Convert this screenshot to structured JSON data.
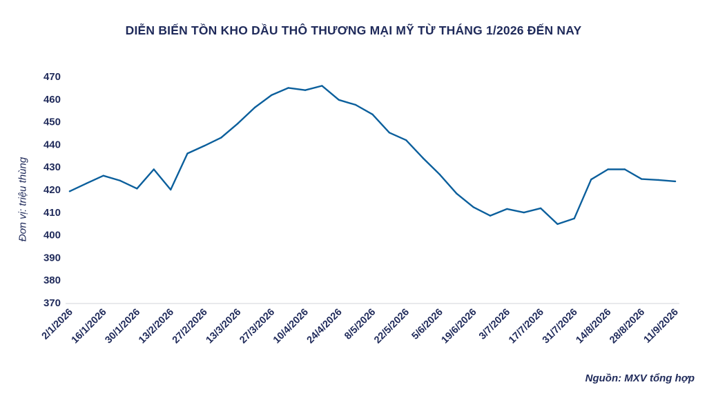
{
  "chart_data": {
    "type": "line",
    "title": "DIỄN BIẾN TỒN KHO DẦU THÔ THƯƠNG MẠI MỸ TỪ THÁNG 1/2026 ĐẾN NAY",
    "ylabel": "Đơn vị: triệu thùng",
    "xlabel": "",
    "ylim": [
      370,
      470
    ],
    "yticks": [
      470,
      460,
      450,
      440,
      430,
      420,
      410,
      400,
      390,
      380,
      370
    ],
    "x": [
      "2/1/2026",
      "9/1/2026",
      "16/1/2026",
      "23/1/2026",
      "30/1/2026",
      "6/2/2026",
      "13/2/2026",
      "20/2/2026",
      "27/2/2026",
      "6/3/2026",
      "13/3/2026",
      "20/3/2026",
      "27/3/2026",
      "3/4/2026",
      "10/4/2026",
      "17/4/2026",
      "24/4/2026",
      "1/5/2026",
      "8/5/2026",
      "15/5/2026",
      "22/5/2026",
      "29/5/2026",
      "5/6/2026",
      "12/6/2026",
      "19/6/2026",
      "26/6/2026",
      "3/7/2026",
      "10/7/2026",
      "17/7/2026",
      "24/7/2026",
      "31/7/2026",
      "7/8/2026",
      "14/8/2026",
      "21/8/2026",
      "28/8/2026",
      "4/9/2026",
      "11/9/2026"
    ],
    "xtick_labels": [
      "2/1/2026",
      "16/1/2026",
      "30/1/2026",
      "13/2/2026",
      "27/2/2026",
      "13/3/2026",
      "27/3/2026",
      "10/4/2026",
      "24/4/2026",
      "8/5/2026",
      "22/5/2026",
      "5/6/2026",
      "19/6/2026",
      "3/7/2026",
      "17/7/2026",
      "31/7/2026",
      "14/8/2026",
      "28/8/2026",
      "11/9/2026"
    ],
    "series": [
      {
        "values": [
          419.3,
          422.8,
          426.2,
          424.0,
          420.5,
          429.0,
          420.0,
          436.0,
          439.4,
          443.0,
          449.3,
          456.3,
          461.8,
          465.0,
          464.0,
          465.9,
          459.7,
          457.5,
          453.3,
          445.2,
          441.9,
          434.0,
          426.7,
          418.3,
          412.3,
          408.5,
          411.5,
          409.9,
          411.8,
          404.8,
          407.3,
          424.5,
          429.0,
          429.0,
          424.7,
          424.3,
          423.7
        ],
        "color": "#0b5f9c"
      }
    ],
    "grid": false,
    "source": "Nguồn: MXV tổng hợp"
  }
}
